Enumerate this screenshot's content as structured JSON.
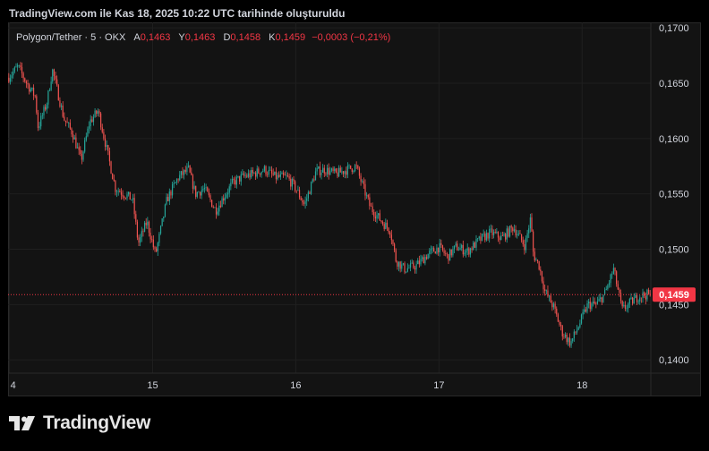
{
  "caption": "TradingView.com ile Kas 18, 2025 10:22 UTC tarihinde oluşturuldu",
  "legend": {
    "symbol": "Polygon/Tether · 5 · OKX",
    "open_label": "A",
    "open": "0,1463",
    "high_label": "Y",
    "high": "0,1463",
    "low_label": "D",
    "low": "0,1458",
    "close_label": "K",
    "close": "0,1459",
    "change": "−0,0003 (−0,21%)"
  },
  "footer": {
    "brand": "TradingView",
    "logo_icon": "tradingview-logo-icon"
  },
  "colors": {
    "up": "#26a69a",
    "down": "#ef5350",
    "price_badge": "#f23645",
    "background": "#131313"
  },
  "chart_data": {
    "type": "candlestick",
    "ylim": [
      0.1388,
      0.1705
    ],
    "y_ticks": [
      "0,1700",
      "0,1650",
      "0,1600",
      "0,1550",
      "0,1500",
      "0,1450",
      "0,1400"
    ],
    "y_tick_values": [
      0.17,
      0.165,
      0.16,
      0.155,
      0.15,
      0.145,
      0.14
    ],
    "x_ticks": [
      "4",
      "15",
      "16",
      "17",
      "18"
    ],
    "x_tick_values": [
      14.0,
      15.0,
      16.0,
      17.0,
      18.0
    ],
    "xlim": [
      13.99,
      18.48
    ],
    "last_price": 0.1459,
    "last_price_label": "0,1459",
    "path_x": [
      13.99,
      14.06,
      14.12,
      14.18,
      14.2,
      14.26,
      14.3,
      14.38,
      14.44,
      14.5,
      14.56,
      14.62,
      14.7,
      14.74,
      14.8,
      14.86,
      14.9,
      14.96,
      15.02,
      15.1,
      15.18,
      15.25,
      15.3,
      15.36,
      15.44,
      15.5,
      15.56,
      15.62,
      15.7,
      15.78,
      15.86,
      15.94,
      16.0,
      16.06,
      16.14,
      16.2,
      16.28,
      16.36,
      16.42,
      16.46,
      16.52,
      16.6,
      16.66,
      16.7,
      16.76,
      16.84,
      16.92,
      17.0,
      17.06,
      17.12,
      17.2,
      17.28,
      17.36,
      17.44,
      17.52,
      17.6,
      17.64,
      17.66,
      17.7,
      17.74,
      17.8,
      17.86,
      17.92,
      17.98,
      18.04,
      18.1,
      18.16,
      18.22,
      18.28,
      18.34,
      18.4,
      18.46
    ],
    "path_y": [
      0.1655,
      0.1665,
      0.165,
      0.1638,
      0.161,
      0.1632,
      0.1662,
      0.1618,
      0.1605,
      0.158,
      0.1615,
      0.1625,
      0.1578,
      0.1555,
      0.155,
      0.1545,
      0.1505,
      0.1525,
      0.1495,
      0.1545,
      0.1565,
      0.1572,
      0.155,
      0.1555,
      0.1535,
      0.1548,
      0.156,
      0.1565,
      0.1568,
      0.1572,
      0.1565,
      0.1565,
      0.1555,
      0.154,
      0.157,
      0.1572,
      0.1568,
      0.1572,
      0.1575,
      0.156,
      0.1538,
      0.1525,
      0.1517,
      0.149,
      0.1482,
      0.1485,
      0.1495,
      0.1502,
      0.1493,
      0.1502,
      0.1498,
      0.1508,
      0.1515,
      0.151,
      0.152,
      0.1503,
      0.1528,
      0.1495,
      0.1485,
      0.1462,
      0.1448,
      0.1425,
      0.1415,
      0.1432,
      0.145,
      0.145,
      0.146,
      0.1482,
      0.1445,
      0.1452,
      0.1458,
      0.1459
    ]
  }
}
